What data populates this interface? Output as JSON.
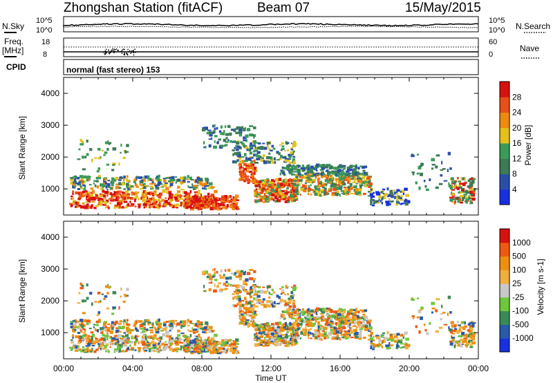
{
  "header": {
    "station": "Zhongshan Station (fitACF)",
    "beam": "Beam 07",
    "date": "15/May/2015"
  },
  "noise_panel": {
    "left_label": "N.Sky",
    "right_label": "N.Search",
    "left_ticks": [
      "10^5",
      "10^0"
    ],
    "right_ticks": [
      "10^5",
      "10^0"
    ]
  },
  "freq_panel": {
    "left_label": "Freq.",
    "left_unit": "[MHz]",
    "right_label": "Nave",
    "left_ticks": [
      "18",
      "8"
    ],
    "right_ticks": [
      "60",
      "0"
    ]
  },
  "cpid": {
    "label": "CPID",
    "mode": "normal (fast stereo) 153"
  },
  "colors": {
    "power": [
      "#1a2fe0",
      "#2a4fa8",
      "#3d7a55",
      "#3a9a58",
      "#e2c21a",
      "#ef8a10",
      "#e8501a",
      "#d81010"
    ],
    "velocity": [
      "#d81010",
      "#ee5a12",
      "#ef8f10",
      "#f0b040",
      "#c8c8c8",
      "#6fc83c",
      "#3a8a58",
      "#2a5aa8",
      "#1a2fe0"
    ]
  },
  "chart_data": [
    {
      "type": "heatmap",
      "title": "",
      "xlabel": "",
      "ylabel": "Slant Range [km]",
      "x_ticks": [
        "00:00",
        "04:00",
        "08:00",
        "12:00",
        "16:00",
        "20:00",
        "00:00"
      ],
      "y_ticks": [
        "1000",
        "2000",
        "3000",
        "4000"
      ],
      "ylim": [
        180,
        4500
      ],
      "colorbar_label": "Power [dB]",
      "colorbar_ticks": [
        "4",
        "8",
        "12",
        "16",
        "20",
        "24",
        "28"
      ]
    },
    {
      "type": "heatmap",
      "title": "",
      "xlabel": "Time UT",
      "ylabel": "Slant Range [km]",
      "x_ticks": [
        "00:00",
        "04:00",
        "08:00",
        "12:00",
        "16:00",
        "20:00",
        "00:00"
      ],
      "y_ticks": [
        "1000",
        "2000",
        "3000",
        "4000"
      ],
      "ylim": [
        180,
        4500
      ],
      "colorbar_label": "Velocity [m s-1]",
      "colorbar_ticks": [
        "1000",
        "500",
        "100",
        "25",
        "-25",
        "-100",
        "-500",
        "-1000"
      ]
    }
  ]
}
